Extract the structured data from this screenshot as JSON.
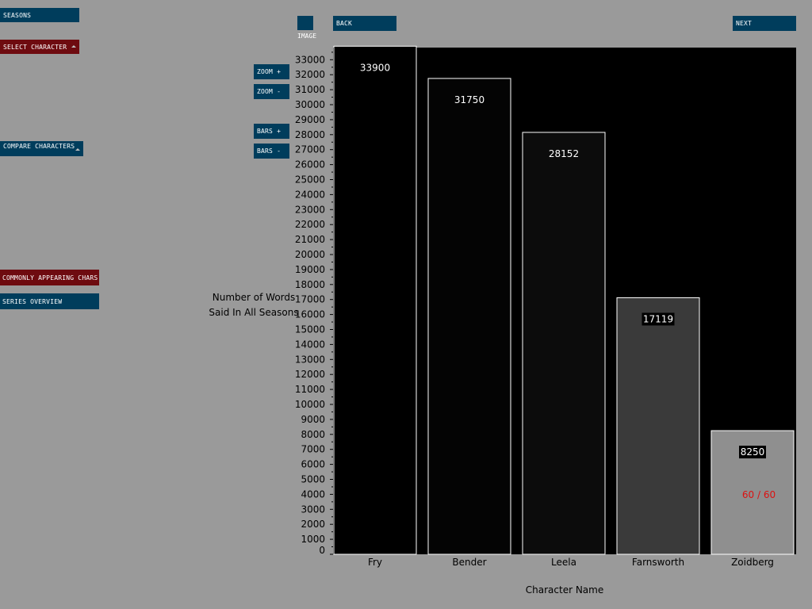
{
  "sidebar": {
    "seasons": "SEASONS",
    "select_character": "SELECT CHARACTER",
    "compare_characters": "COMPARE CHARACTERS",
    "commonly_appearing": "COMMONLY APPEARING CHARS",
    "series_overview": "SERIES OVERVIEW"
  },
  "toolbar": {
    "image_label": "IMAGE",
    "back": "BACK",
    "next": "NEXT",
    "zoom_in": "ZOOM +",
    "zoom_out": "ZOOM -",
    "bars_more": "BARS +",
    "bars_less": "BARS -"
  },
  "colors": {
    "button_blue": "#003d5c",
    "button_red": "#6e0b10",
    "background": "#9a9a9a",
    "plot_bg": "#000000",
    "counter_text": "#dd1111"
  },
  "counter": "60 / 60",
  "chart_data": {
    "type": "bar",
    "categories": [
      "Fry",
      "Bender",
      "Leela",
      "Farnsworth",
      "Zoidberg"
    ],
    "values": [
      33900,
      31750,
      28152,
      17119,
      8250
    ],
    "value_labels": [
      "33900",
      "31750",
      "28152",
      "17119",
      "8250"
    ],
    "bar_colors": [
      "#000000",
      "#040404",
      "#0c0c0c",
      "#3a3a3a",
      "#8f8f8f"
    ],
    "ylabel_lines": [
      "Number of Words",
      "Said In All Seasons"
    ],
    "xlabel": "Character Name",
    "ylim": [
      0,
      33000
    ],
    "ytick_step": 1000,
    "grid": false
  }
}
